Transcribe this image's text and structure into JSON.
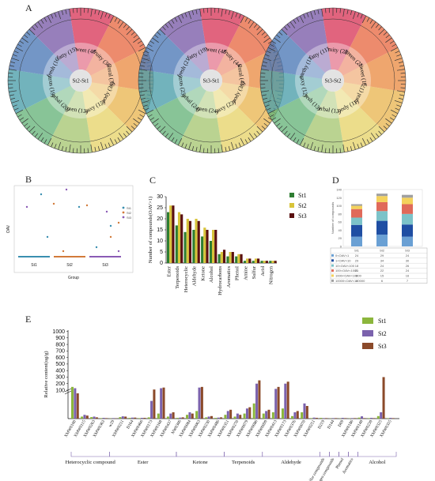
{
  "colors": {
    "St1": "#8cb63c",
    "St2": "#7b62ad",
    "St3": "#8b4a2a",
    "C_St1": "#2e7d32",
    "C_St2": "#d8c43a",
    "C_St3": "#5a1010"
  },
  "panels": {
    "A": "A",
    "B": "B",
    "C": "C",
    "D": "D",
    "E": "E"
  },
  "chart_data": [
    {
      "type": "wheel",
      "panel": "A",
      "center": "St2-St1",
      "sectors": [
        {
          "name": "sweet",
          "count": 48
        },
        {
          "name": "fruity",
          "count": 36
        },
        {
          "name": "floral",
          "count": 35
        },
        {
          "name": "woody",
          "count": 30
        },
        {
          "name": "waxy",
          "count": 15
        },
        {
          "name": "green",
          "count": 13
        },
        {
          "name": "herbal",
          "count": 20
        },
        {
          "name": "citrus",
          "count": 19
        },
        {
          "name": "fresh",
          "count": 16
        },
        {
          "name": "fatty",
          "count": 15
        }
      ]
    },
    {
      "type": "wheel",
      "panel": "A",
      "center": "St3-St1",
      "sectors": [
        {
          "name": "sweet",
          "count": 48
        },
        {
          "name": "fruity",
          "count": 44
        },
        {
          "name": "floral",
          "count": 41
        },
        {
          "name": "woody",
          "count": 30
        },
        {
          "name": "waxy",
          "count": 23
        },
        {
          "name": "green",
          "count": 24
        },
        {
          "name": "herbal",
          "count": 24
        },
        {
          "name": "citrus",
          "count": 25
        },
        {
          "name": "fresh",
          "count": 21
        },
        {
          "name": "fatty",
          "count": 19
        }
      ]
    },
    {
      "type": "wheel",
      "panel": "A",
      "center": "St3-St2",
      "sectors": [
        {
          "name": "fruity",
          "count": 25
        },
        {
          "name": "green",
          "count": 22
        },
        {
          "name": "sweet",
          "count": 19
        },
        {
          "name": "floral",
          "count": 17
        },
        {
          "name": "woody",
          "count": 11
        },
        {
          "name": "herbal",
          "count": 13
        },
        {
          "name": "fresh",
          "count": 13
        },
        {
          "name": "waxy",
          "count": 12
        },
        {
          "name": "earthy",
          "count": 11
        },
        {
          "name": "fatty",
          "count": 11
        }
      ]
    },
    {
      "type": "scatter",
      "panel": "B",
      "xlabel": "Group",
      "ylabel": "OAV",
      "categories": [
        "St1",
        "St2",
        "St3"
      ],
      "legend": [
        "St1",
        "St2",
        "St3"
      ]
    },
    {
      "type": "bar",
      "panel": "C",
      "ylabel": "Number of compounds(OAV>1)",
      "categories": [
        "Ester",
        "Terpenoids",
        "Heterocyclic",
        "Aldehyde",
        "Ketone",
        "Alcohol",
        "Hydrocarbons",
        "Aromatics",
        "Phenol",
        "Amine",
        "Sulfur",
        "Acid",
        "Nitrogen"
      ],
      "ylim": [
        0,
        30
      ],
      "yticks": [
        "0",
        "5",
        "10",
        "15",
        "20",
        "25",
        "30"
      ],
      "series": [
        {
          "name": "St1",
          "values": [
            23,
            17,
            14,
            15,
            12,
            10,
            4,
            3,
            3,
            1,
            1,
            1,
            1
          ]
        },
        {
          "name": "St2",
          "values": [
            26,
            23,
            20,
            20,
            16,
            15,
            5,
            5,
            4,
            2,
            2,
            1,
            1
          ]
        },
        {
          "name": "St3",
          "values": [
            26,
            22,
            19,
            19,
            15,
            15,
            6,
            5,
            4,
            2,
            2,
            1,
            1
          ]
        }
      ]
    },
    {
      "type": "bar",
      "panel": "D",
      "ylabel": "Number of compounds",
      "categories": [
        "St1",
        "St2",
        "St3"
      ],
      "ylim": [
        0,
        140
      ],
      "yticks": [
        "0",
        "20",
        "40",
        "60",
        "80",
        "100",
        "120",
        "140"
      ],
      "series": [
        {
          "name": "0<OAV<1",
          "values": [
            24,
            29,
            24
          ]
        },
        {
          "name": "1<OAV<10",
          "values": [
            29,
            34,
            30
          ]
        },
        {
          "name": "10<OAV<100",
          "values": [
            18,
            24,
            26
          ]
        },
        {
          "name": "100<OAV<1000",
          "values": [
            21,
            22,
            24
          ]
        },
        {
          "name": "1000<OAV<10000",
          "values": [
            8,
            15,
            16
          ]
        },
        {
          "name": "10000<OAV<100000",
          "values": [
            4,
            6,
            7
          ]
        }
      ],
      "table_rows": [
        {
          "label": "0<OAV<1",
          "values": [
            "24",
            "29",
            "24"
          ]
        },
        {
          "label": "1<OAV<10",
          "values": [
            "29",
            "34",
            "30"
          ]
        },
        {
          "label": "10<OAV<100",
          "values": [
            "18",
            "24",
            "26"
          ]
        },
        {
          "label": "100<OAV<1000",
          "values": [
            "21",
            "22",
            "24"
          ]
        },
        {
          "label": "1000<OAV<10000",
          "values": [
            "8",
            "15",
            "16"
          ]
        },
        {
          "label": "10000<OAV<100000",
          "values": [
            "4",
            "6",
            "7"
          ]
        }
      ]
    },
    {
      "type": "bar",
      "panel": "E",
      "ylabel": "Relative content(ug/g)",
      "yticks_upper": [
        "100",
        "200",
        "300",
        "400",
        "500",
        "600",
        "700",
        "800",
        "900",
        "1000"
      ],
      "legend": [
        "St1",
        "St2",
        "St3"
      ],
      "compounds": [
        "XMW0100",
        "XMW0115",
        "XMW0263",
        "XMW0363",
        "w29",
        "XMW0211",
        "D164",
        "XMW0466",
        "XMW0173",
        "XMW0168",
        "XMW0437",
        "NW0306",
        "XMW0084",
        "XMW0063",
        "XMW0230",
        "XMW0486",
        "XMW0351",
        "XMW0270",
        "XMW0079",
        "XMW0086",
        "XMW0099",
        "XMW0413",
        "XMW0173",
        "XMW0376",
        "XMW0070",
        "XMW0251",
        "D219",
        "D144",
        "D09",
        "XMW0186",
        "XMW0148",
        "XMW0239",
        "XMW0325",
        "XMW0355"
      ],
      "series": [
        {
          "name": "St1",
          "values": [
            150,
            8,
            6,
            2,
            1,
            6,
            3,
            2,
            5,
            20,
            8,
            3,
            15,
            30,
            5,
            3,
            15,
            8,
            20,
            60,
            20,
            25,
            40,
            10,
            25,
            2,
            3,
            1,
            1,
            1,
            4,
            2,
            10,
            2
          ]
        },
        {
          "name": "St2",
          "values": [
            130,
            15,
            8,
            3,
            2,
            9,
            4,
            3,
            70,
            130,
            20,
            4,
            25,
            140,
            8,
            4,
            30,
            20,
            40,
            200,
            30,
            120,
            200,
            25,
            60,
            4,
            2,
            2,
            3,
            2,
            9,
            3,
            25,
            3
          ]
        },
        {
          "name": "St3",
          "values": [
            100,
            12,
            5,
            2,
            1,
            8,
            4,
            3,
            110,
            140,
            25,
            5,
            20,
            150,
            10,
            5,
            35,
            15,
            45,
            250,
            35,
            150,
            230,
            30,
            50,
            3,
            2,
            2,
            2,
            2,
            2,
            2,
            300,
            2
          ]
        }
      ],
      "groups": [
        {
          "name": "Heterocyclic compound"
        },
        {
          "name": "Ester"
        },
        {
          "name": "Ketone"
        },
        {
          "name": "Terpenoids"
        },
        {
          "name": "Aldehyde"
        },
        {
          "name": "Sulfur compounds"
        },
        {
          "name": "Nitrogen compounds"
        },
        {
          "name": "Phenol"
        },
        {
          "name": "Aromatics"
        },
        {
          "name": "Alcohol"
        }
      ]
    }
  ]
}
